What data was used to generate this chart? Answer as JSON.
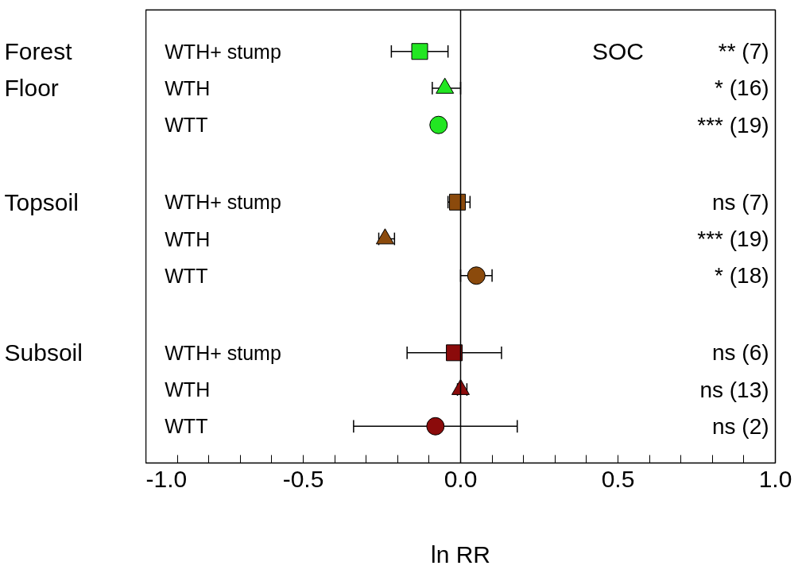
{
  "chart_data": {
    "type": "scatter",
    "orientation": "horizontal",
    "categories": [
      "WTH+  stump",
      "WTH",
      "WTT",
      "WTH+  stump",
      "WTH",
      "WTT",
      "WTH+  stump",
      "WTH",
      "WTT"
    ],
    "xlim": [
      -1.0,
      1.0
    ],
    "xticks": [
      {
        "value": -1.0,
        "label": "-1.0"
      },
      {
        "value": -0.9,
        "label": null
      },
      {
        "value": -0.8,
        "label": null
      },
      {
        "value": -0.7,
        "label": null
      },
      {
        "value": -0.6,
        "label": null
      },
      {
        "value": -0.5,
        "label": "-0.5"
      },
      {
        "value": -0.4,
        "label": null
      },
      {
        "value": -0.3,
        "label": null
      },
      {
        "value": -0.2,
        "label": null
      },
      {
        "value": -0.1,
        "label": null
      },
      {
        "value": 0.0,
        "label": "0.0"
      },
      {
        "value": 0.1,
        "label": null
      },
      {
        "value": 0.2,
        "label": null
      },
      {
        "value": 0.3,
        "label": null
      },
      {
        "value": 0.4,
        "label": null
      },
      {
        "value": 0.5,
        "label": "0.5"
      },
      {
        "value": 0.6,
        "label": null
      },
      {
        "value": 0.7,
        "label": null
      },
      {
        "value": 0.8,
        "label": null
      },
      {
        "value": 0.9,
        "label": null
      },
      {
        "value": 1.0,
        "label": "1.0"
      }
    ],
    "xlabel": "ln RR",
    "ref_lines": [
      {
        "axis": "x",
        "value": 0.0,
        "color": "#000000"
      }
    ],
    "series": [
      {
        "marker": "square",
        "colors": [
          "#22e622",
          null,
          null,
          "#8b4a0c",
          null,
          null,
          "#8b0b0b",
          null,
          null
        ],
        "values": [
          -0.13,
          null,
          null,
          -0.01,
          null,
          null,
          -0.02,
          null,
          null
        ],
        "errors": [
          [
            -0.22,
            -0.04
          ],
          null,
          null,
          [
            -0.04,
            0.03
          ],
          null,
          null,
          [
            -0.17,
            0.13
          ],
          null,
          null
        ]
      },
      {
        "marker": "triangle",
        "colors": [
          null,
          "#22e622",
          null,
          null,
          "#8b4a0c",
          null,
          null,
          "#8b0b0b",
          null
        ],
        "values": [
          null,
          -0.05,
          null,
          null,
          -0.24,
          null,
          null,
          0.0,
          null
        ],
        "errors": [
          null,
          [
            -0.09,
            0.0
          ],
          null,
          null,
          [
            -0.26,
            -0.21
          ],
          null,
          null,
          [
            -0.01,
            0.02
          ],
          null
        ]
      },
      {
        "marker": "circle",
        "colors": [
          null,
          null,
          "#22e622",
          null,
          null,
          "#8b4a0c",
          null,
          null,
          "#8b0b0b"
        ],
        "values": [
          null,
          null,
          -0.07,
          null,
          null,
          0.05,
          null,
          null,
          -0.08
        ],
        "errors": [
          null,
          null,
          null,
          null,
          null,
          [
            0.0,
            0.1
          ],
          null,
          null,
          [
            -0.34,
            0.18
          ]
        ]
      }
    ],
    "value_labels": [
      "** (7)",
      "* (16)",
      "*** (19)",
      "ns (7)",
      "*** (19)",
      "* (18)",
      "ns (6)",
      "ns (13)",
      "ns (2)"
    ],
    "annotations": [
      "SOC",
      "Forest Floor",
      "Topsoil",
      "Subsoil"
    ],
    "grid": false
  }
}
